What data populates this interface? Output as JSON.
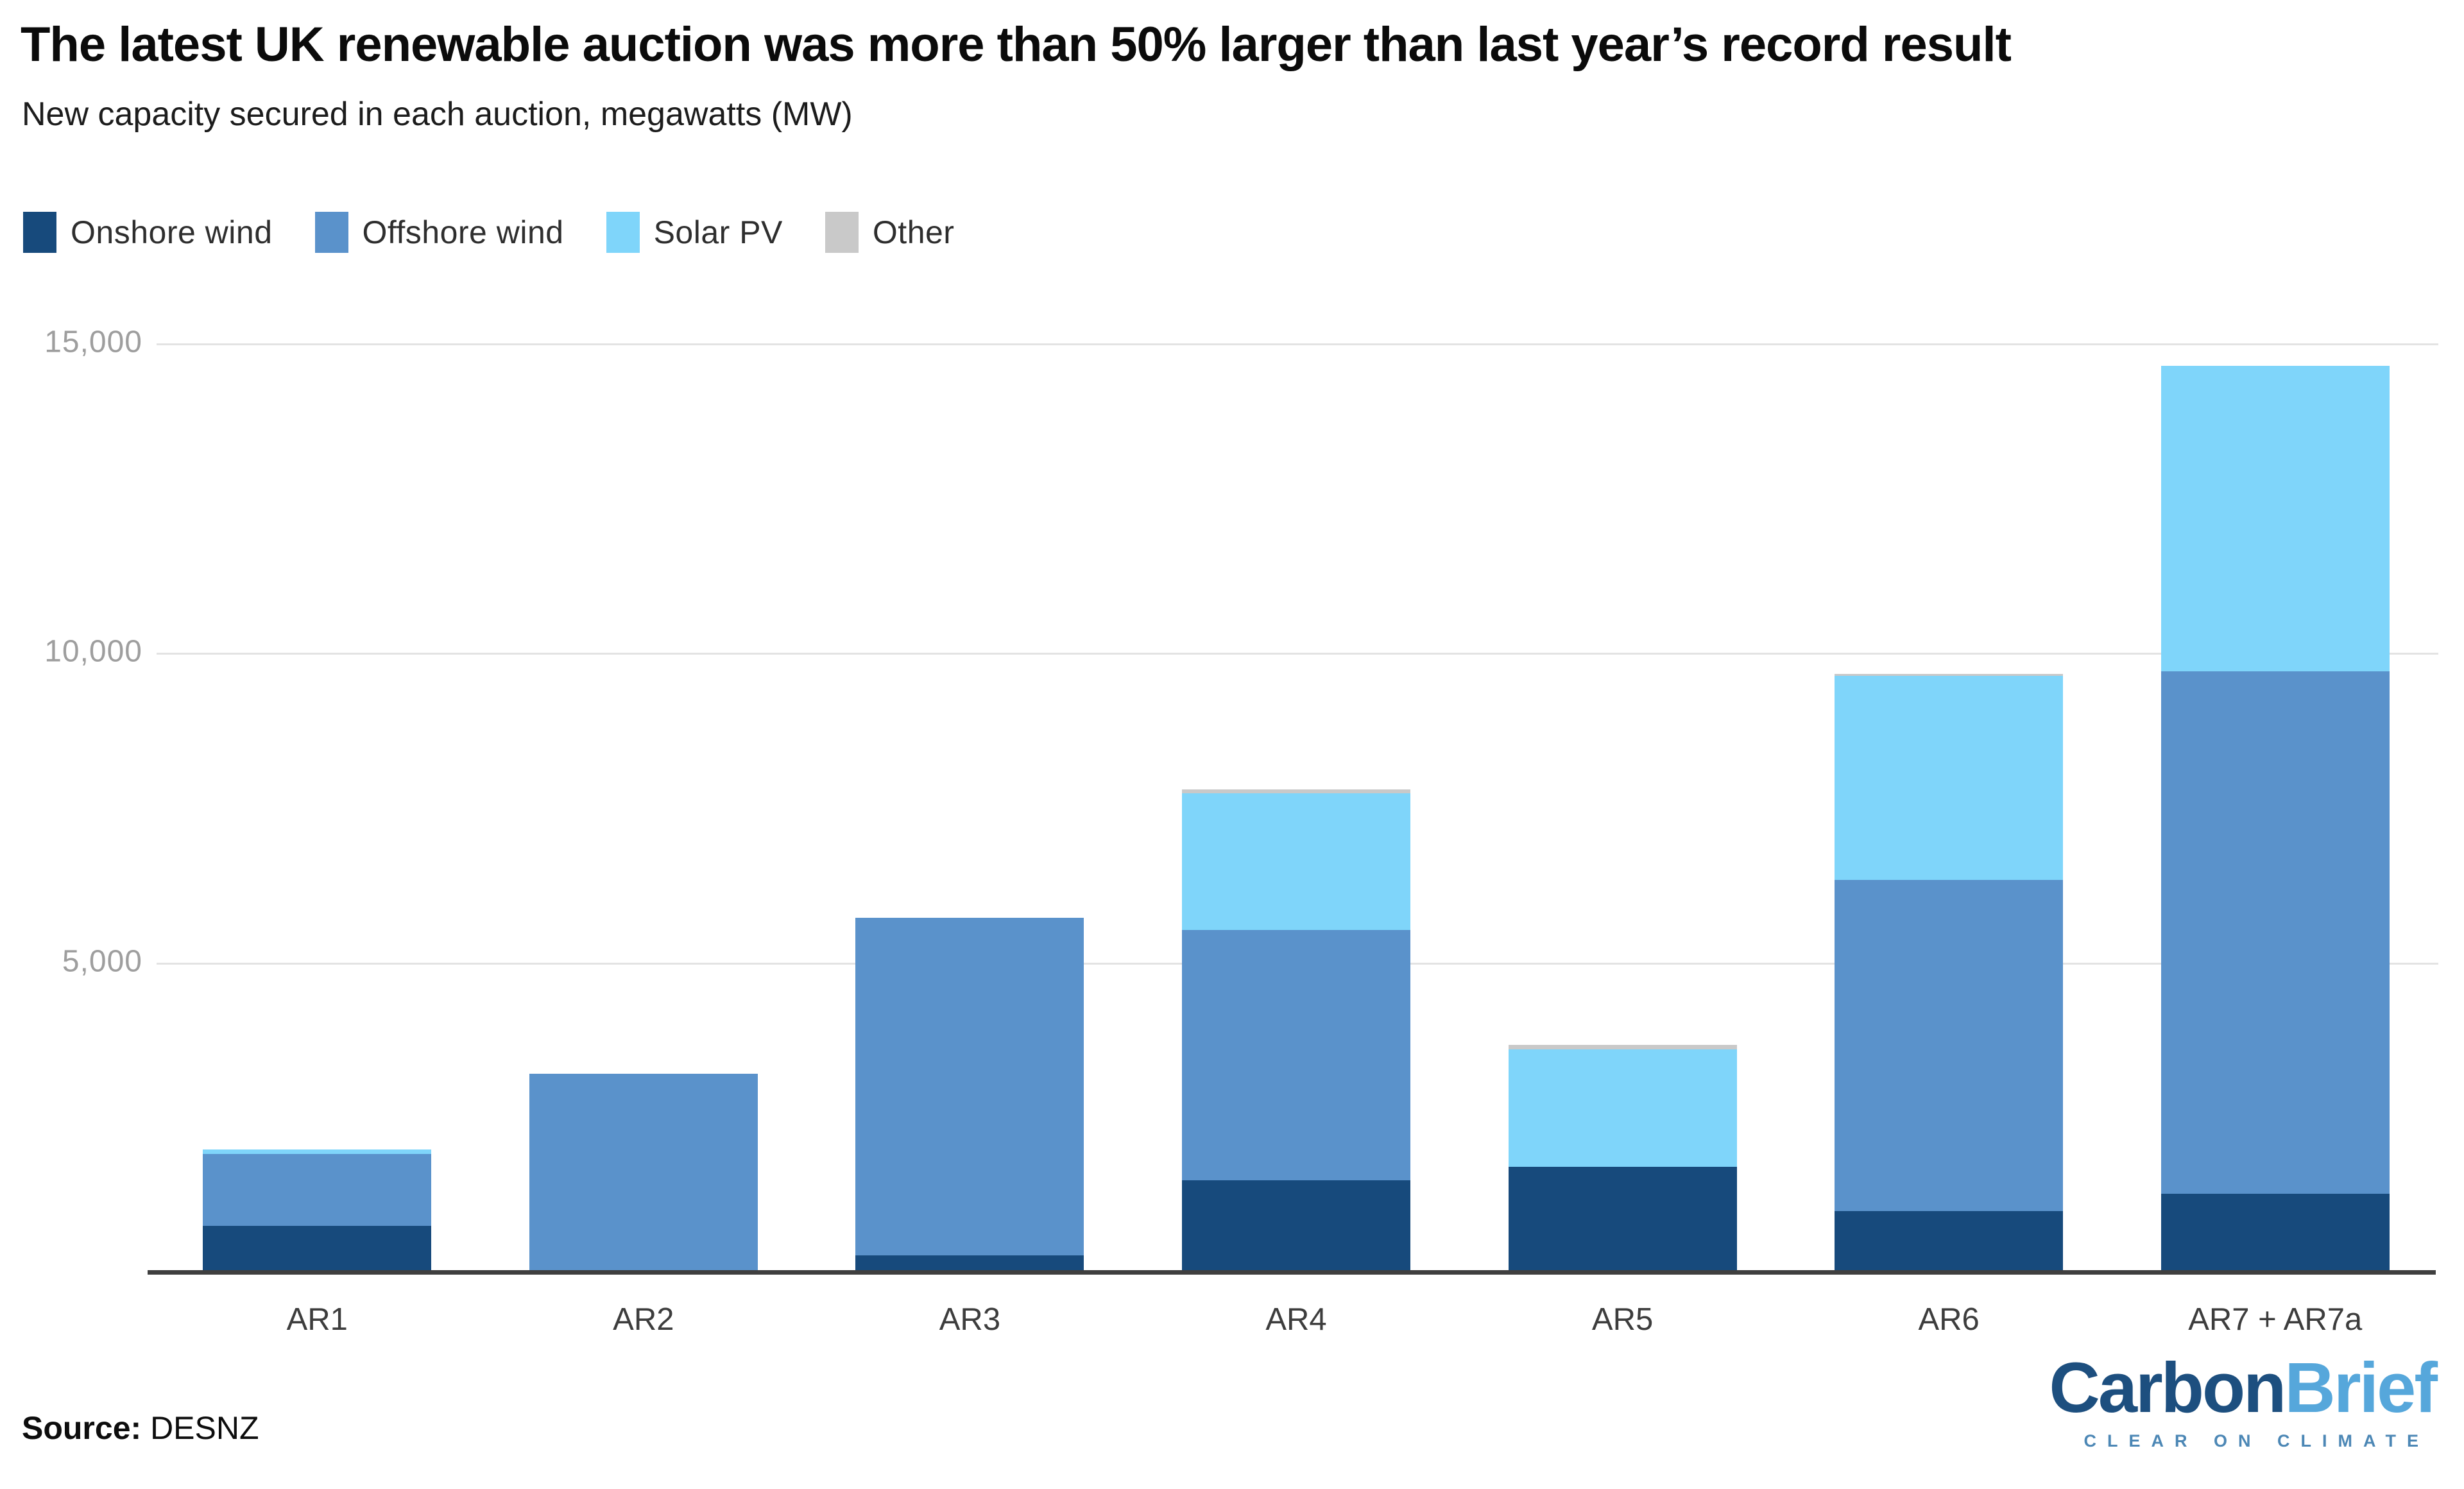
{
  "header": {
    "title": "The latest UK renewable auction was more than 50% larger than last year’s record result",
    "subtitle": "New capacity secured in each auction, megawatts (MW)"
  },
  "legend": [
    {
      "label": "Onshore wind",
      "color": "#174a7c"
    },
    {
      "label": "Offshore wind",
      "color": "#5a92cb"
    },
    {
      "label": "Solar PV",
      "color": "#7fd5fa"
    },
    {
      "label": "Other",
      "color": "#c9c9c9"
    }
  ],
  "chart_data": {
    "type": "bar",
    "stacked": true,
    "title": "The latest UK renewable auction was more than 50% larger than last year’s record result",
    "subtitle": "New capacity secured in each auction, megawatts (MW)",
    "xlabel": "",
    "ylabel": "",
    "ylim": [
      0,
      15000
    ],
    "grid": true,
    "legend_position": "top",
    "categories": [
      "AR1",
      "AR2",
      "AR3",
      "AR4",
      "AR5",
      "AR6",
      "AR7 + AR7a"
    ],
    "series": [
      {
        "name": "Onshore wind",
        "color": "#174a7c",
        "values": [
          750,
          0,
          270,
          1480,
          1700,
          980,
          1270
        ]
      },
      {
        "name": "Offshore wind",
        "color": "#5a92cb",
        "values": [
          1160,
          3200,
          5450,
          4050,
          0,
          5350,
          8430
        ]
      },
      {
        "name": "Solar PV",
        "color": "#7fd5fa",
        "values": [
          70,
          0,
          0,
          2200,
          1900,
          3300,
          4940
        ]
      },
      {
        "name": "Other",
        "color": "#c9c9c9",
        "values": [
          0,
          0,
          0,
          70,
          65,
          30,
          0
        ]
      }
    ],
    "totals_approx_mw": [
      1980,
      3200,
      5720,
      7800,
      3665,
      9660,
      14640
    ],
    "yticks": [
      {
        "value": 5000,
        "label": "5,000"
      },
      {
        "value": 10000,
        "label": "10,000"
      },
      {
        "value": 15000,
        "label": "15,000"
      }
    ]
  },
  "footer": {
    "source_label": "Source:",
    "source_value": "DESNZ",
    "logo": {
      "part1": "Carbon",
      "part2": "Brief",
      "tagline": "CLEAR ON CLIMATE",
      "part1_color": "#1d4f7f",
      "part2_color": "#56a7db",
      "tagline_color": "#4c87b5"
    }
  }
}
